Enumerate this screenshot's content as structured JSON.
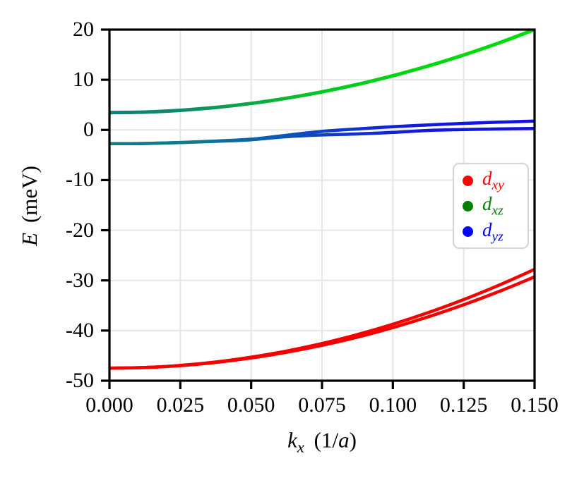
{
  "figure": {
    "background": "#ffffff"
  },
  "chart_data": {
    "type": "line",
    "title": "",
    "xlabel": {
      "text": "kx (1/a)",
      "variable": "k",
      "subscript": "x",
      "rest_prefix": "(1/",
      "rest_var": "a",
      "rest_suffix": ")"
    },
    "ylabel": {
      "text": "E (meV)",
      "variable": "E",
      "units": "(meV)"
    },
    "xlim": [
      0,
      0.15
    ],
    "ylim": [
      -50,
      20
    ],
    "xticks": [
      "0.000",
      "0.025",
      "0.050",
      "0.075",
      "0.100",
      "0.125",
      "0.150"
    ],
    "xtick_values": [
      0,
      0.025,
      0.05,
      0.075,
      0.1,
      0.125,
      0.15
    ],
    "yticks": [
      "20",
      "10",
      "0",
      "-10",
      "-20",
      "-30",
      "-40",
      "-50"
    ],
    "ytick_values": [
      20,
      10,
      0,
      -10,
      -20,
      -30,
      -40,
      -50
    ],
    "grid": true,
    "grid_color": "#e6e6e6",
    "axis_color": "#000000",
    "legend": {
      "position": "center-right",
      "border_color": "#d4d4d4",
      "items": [
        {
          "label_main": "d",
          "label_sub": "xy",
          "color": "#ff0000"
        },
        {
          "label_main": "d",
          "label_sub": "xz",
          "color": "#007f00"
        },
        {
          "label_main": "d",
          "label_sub": "yz",
          "color": "#0000ff"
        }
      ]
    },
    "x_samples": [
      0,
      0.0125,
      0.025,
      0.0375,
      0.05,
      0.0625,
      0.075,
      0.0875,
      0.1,
      0.1125,
      0.125,
      0.1375,
      0.15
    ],
    "series": [
      {
        "name": "band-dxz-green-top",
        "values": [
          3.45,
          3.56,
          3.91,
          4.48,
          5.29,
          6.32,
          7.59,
          9.08,
          10.81,
          12.76,
          14.94,
          17.36,
          20.0
        ],
        "width": 5,
        "gradient": [
          [
            0,
            "#0e8080"
          ],
          [
            0.18,
            "#0e8a68"
          ],
          [
            0.32,
            "#0aa748"
          ],
          [
            0.5,
            "#04c822"
          ],
          [
            0.7,
            "#00d70e"
          ],
          [
            1,
            "#00dc08"
          ]
        ]
      },
      {
        "name": "band-dyz-blue-upper",
        "values": [
          -2.75,
          -2.7,
          -2.5,
          -2.22,
          -1.85,
          -1.05,
          -0.3,
          0.2,
          0.65,
          1.0,
          1.3,
          1.55,
          1.75
        ],
        "width": 4.5,
        "gradient": [
          [
            0,
            "#0e8080"
          ],
          [
            0.2,
            "#0d7b90"
          ],
          [
            0.38,
            "#0c5cb0"
          ],
          [
            0.55,
            "#0f36ca"
          ],
          [
            0.75,
            "#1218dc"
          ],
          [
            1,
            "#1212e0"
          ]
        ]
      },
      {
        "name": "band-dyz-blue-lower",
        "values": [
          -2.75,
          -2.7,
          -2.52,
          -2.28,
          -1.95,
          -1.35,
          -1.0,
          -0.8,
          -0.5,
          -0.1,
          0.08,
          0.2,
          0.3
        ],
        "width": 4.5,
        "gradient": [
          [
            0,
            "#0e8080"
          ],
          [
            0.2,
            "#0d7b90"
          ],
          [
            0.38,
            "#0c5cb0"
          ],
          [
            0.55,
            "#0f36ca"
          ],
          [
            0.75,
            "#1218dc"
          ],
          [
            1,
            "#1212e0"
          ]
        ]
      },
      {
        "name": "band-dxy-red-upper",
        "values": [
          -47.5,
          -47.36,
          -46.95,
          -46.27,
          -45.31,
          -44.08,
          -42.58,
          -40.8,
          -38.74,
          -36.42,
          -33.82,
          -30.94,
          -27.8
        ],
        "width": 4.5,
        "color": "#f40000"
      },
      {
        "name": "band-dxy-red-lower",
        "values": [
          -47.5,
          -47.37,
          -46.99,
          -46.36,
          -45.48,
          -44.34,
          -42.95,
          -41.31,
          -39.41,
          -37.26,
          -34.86,
          -32.2,
          -29.3
        ],
        "width": 4.5,
        "color": "#f40000"
      }
    ]
  }
}
